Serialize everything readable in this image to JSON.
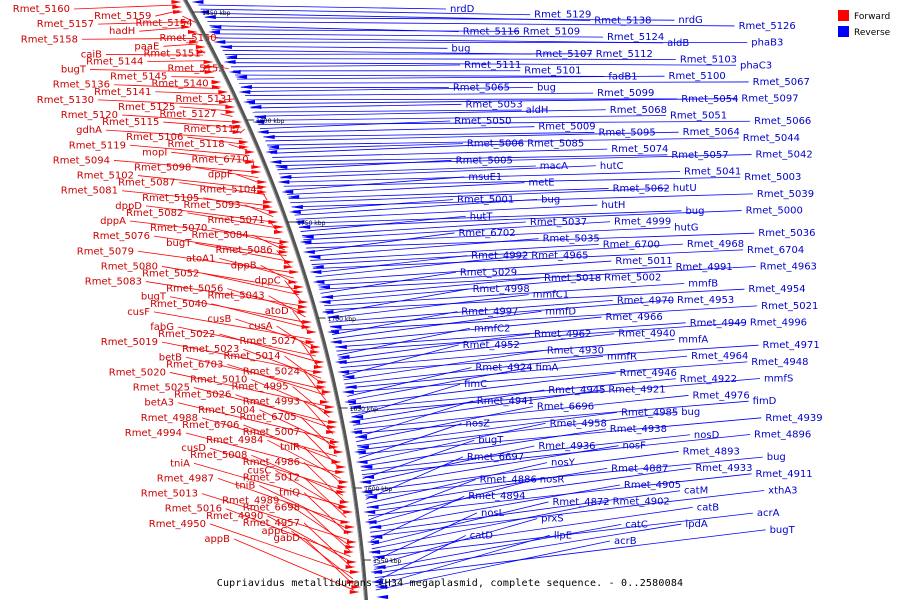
{
  "legend": {
    "items": [
      {
        "label": "Forward",
        "color": "#ff0000"
      },
      {
        "label": "Reverse",
        "color": "#0000ff"
      }
    ]
  },
  "caption": "Cupriavidus metallidurans CH34 megaplasmid, complete sequence. - 0..2580084",
  "colors": {
    "forward": "#ff0000",
    "reverse": "#0000ff",
    "forward_label": "#cc0000",
    "reverse_label": "#0000cc",
    "backbone": "#555555"
  },
  "scale_ticks": [
    "1850 kbp",
    "1800 kbp",
    "1750 kbp",
    "1700 kbp",
    "1650 kbp",
    "1600 kbp",
    "1550 kbp"
  ],
  "forward_labels": [
    "Rmet_5160",
    "Rmet_5159",
    "Rmet_5154",
    "Rmet_5157",
    "hadH",
    "Rmet_5150",
    "Rmet_5158",
    "paaE",
    "Rmet_5151",
    "caiB",
    "Rmet_5144",
    "Rmet_5152",
    "bugT",
    "Rmet_5145",
    "Rmet_5140",
    "Rmet_5136",
    "Rmet_5141",
    "Rmet_5131",
    "Rmet_5130",
    "Rmet_5125",
    "Rmet_5127",
    "Rmet_5120",
    "Rmet_5115",
    "Rmet_5117",
    "gdhA",
    "Rmet_5106",
    "Rmet_5118",
    "Rmet_5119",
    "mopI",
    "Rmet_6710",
    "Rmet_5094",
    "Rmet_5098",
    "dppF",
    "Rmet_5102",
    "Rmet_5087",
    "Rmet_5104",
    "Rmet_5081",
    "Rmet_5105",
    "Rmet_5093",
    "dppD",
    "Rmet_5082",
    "Rmet_5071",
    "dppA",
    "Rmet_5070",
    "Rmet_5084",
    "Rmet_5076",
    "bugT",
    "Rmet_5086",
    "Rmet_5079",
    "atoA1",
    "dppB",
    "Rmet_5080",
    "Rmet_5052",
    "dppC",
    "Rmet_5083",
    "Rmet_5056",
    "Rmet_5043",
    "bugT",
    "Rmet_5040",
    "atoD",
    "cusF",
    "cusB",
    "cusA",
    "fabG",
    "Rmet_5022",
    "Rmet_5027",
    "Rmet_5019",
    "Rmet_5023",
    "Rmet_5014",
    "betB",
    "Rmet_6703",
    "Rmet_5024",
    "Rmet_5020",
    "Rmet_5010",
    "Rmet_4995",
    "Rmet_5025",
    "Rmet_5026",
    "Rmet_4993",
    "betA3",
    "Rmet_5004",
    "Rmet_6705",
    "Rmet_4988",
    "Rmet_6706",
    "Rmet_5007",
    "Rmet_4994",
    "Rmet_4984",
    "tniR",
    "cusD",
    "Rmet_5008",
    "Rmet_4986",
    "tniA",
    "cusC",
    "Rmet_5012",
    "Rmet_4987",
    "tniB",
    "tniQ",
    "Rmet_5013",
    "Rmet_4989",
    "Rmet_6698",
    "Rmet_5016",
    "Rmet_4990",
    "Rmet_4957",
    "Rmet_4950",
    "appC",
    "gabD",
    "appB"
  ],
  "reverse_labels": [
    "nrdD",
    "Rmet_5129",
    "Rmet_5138",
    "nrdG",
    "Rmet_5126",
    "Rmet_5116",
    "Rmet_5109",
    "Rmet_5124",
    "aldB",
    "phaB3",
    "bug",
    "Rmet_5107",
    "Rmet_5112",
    "Rmet_5103",
    "phaC3",
    "Rmet_5111",
    "Rmet_5101",
    "fadB1",
    "Rmet_5100",
    "Rmet_5067",
    "Rmet_5065",
    "bug",
    "Rmet_5099",
    "Rmet_5054",
    "Rmet_5097",
    "Rmet_5053",
    "aldH",
    "Rmet_5068",
    "Rmet_5051",
    "Rmet_5066",
    "Rmet_5050",
    "Rmet_5009",
    "Rmet_5095",
    "Rmet_5064",
    "Rmet_5044",
    "Rmet_5006",
    "Rmet_5085",
    "Rmet_5074",
    "Rmet_5057",
    "Rmet_5042",
    "Rmet_5005",
    "macA",
    "hutC",
    "Rmet_5041",
    "Rmet_5003",
    "msuE1",
    "metE",
    "Rmet_5062",
    "hutU",
    "Rmet_5039",
    "Rmet_5001",
    "bug",
    "hutH",
    "bug",
    "Rmet_5000",
    "hutT",
    "Rmet_5037",
    "Rmet_4999",
    "hutG",
    "Rmet_5036",
    "Rmet_6702",
    "Rmet_5035",
    "Rmet_6700",
    "Rmet_4968",
    "Rmet_6704",
    "Rmet_4992",
    "Rmet_4965",
    "Rmet_5011",
    "Rmet_4991",
    "Rmet_4963",
    "Rmet_5029",
    "Rmet_5018",
    "Rmet_5002",
    "mmfB",
    "Rmet_4954",
    "Rmet_4998",
    "mmfC1",
    "Rmet_4970",
    "Rmet_4953",
    "Rmet_5021",
    "Rmet_4997",
    "mmfD",
    "Rmet_4966",
    "Rmet_4949",
    "Rmet_4996",
    "mmfC2",
    "Rmet_4962",
    "Rmet_4940",
    "mmfA",
    "Rmet_4971",
    "Rmet_4952",
    "Rmet_4930",
    "mmfR",
    "Rmet_4964",
    "Rmet_4948",
    "Rmet_4924",
    "fimA",
    "Rmet_4946",
    "Rmet_4922",
    "mmfS",
    "fimC",
    "Rmet_4945",
    "Rmet_4921",
    "Rmet_4976",
    "fimD",
    "Rmet_4941",
    "Rmet_6696",
    "Rmet_4985",
    "bug",
    "Rmet_4939",
    "nosZ",
    "Rmet_4958",
    "Rmet_4938",
    "nosD",
    "Rmet_4896",
    "bugT",
    "Rmet_4936",
    "nosF",
    "Rmet_4893",
    "bug",
    "Rmet_6697",
    "nosY",
    "Rmet_4887",
    "Rmet_4933",
    "Rmet_4911",
    "Rmet_4886",
    "nosR",
    "Rmet_4905",
    "catM",
    "xthA3",
    "Rmet_4894",
    "Rmet_4872",
    "Rmet_4902",
    "catB",
    "acrA",
    "nosL",
    "prxS",
    "catC",
    "lpdA",
    "bugT",
    "catD",
    "llpE",
    "acrB"
  ]
}
